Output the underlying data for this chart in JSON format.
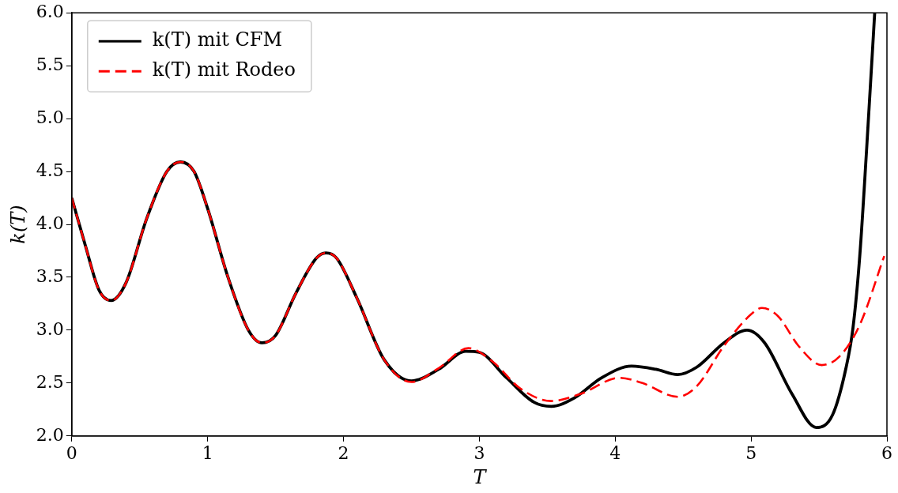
{
  "chart_data": {
    "type": "line",
    "xlabel": "T",
    "ylabel": "k(T)",
    "xlim": [
      0,
      6
    ],
    "ylim": [
      2,
      6
    ],
    "xticks": [
      0,
      1,
      2,
      3,
      4,
      5,
      6
    ],
    "yticks": [
      {
        "value": 2,
        "label": "2.0"
      },
      {
        "value": 2.5,
        "label": "2.5"
      },
      {
        "value": 3,
        "label": "3.0"
      },
      {
        "value": 3.5,
        "label": "3.5"
      },
      {
        "value": 4,
        "label": "4.0"
      },
      {
        "value": 4.5,
        "label": "4.5"
      },
      {
        "value": 5,
        "label": "5.0"
      },
      {
        "value": 5.5,
        "label": "5.5"
      },
      {
        "value": 6,
        "label": "6.0"
      }
    ],
    "grid": false,
    "legend": "top left",
    "marker": "none",
    "series": [
      {
        "name": "k(T) mit CFM",
        "color": "#000000",
        "line_style": "solid",
        "x": [
          0,
          0.1,
          0.2,
          0.29,
          0.4,
          0.55,
          0.7,
          0.8,
          0.9,
          1.0,
          1.15,
          1.3,
          1.4,
          1.5,
          1.65,
          1.8,
          1.87,
          1.95,
          2.1,
          2.3,
          2.5,
          2.7,
          2.9,
          3.0,
          3.2,
          3.4,
          3.53,
          3.7,
          3.9,
          4.12,
          4.3,
          4.46,
          4.6,
          4.8,
          4.97,
          5.1,
          5.3,
          5.48,
          5.6,
          5.7,
          5.75,
          5.8,
          5.85,
          5.91
        ],
        "values": [
          4.25,
          3.8,
          3.38,
          3.28,
          3.45,
          4.05,
          4.5,
          4.59,
          4.5,
          4.15,
          3.5,
          3.0,
          2.88,
          2.95,
          3.35,
          3.68,
          3.73,
          3.68,
          3.3,
          2.72,
          2.52,
          2.63,
          2.8,
          2.79,
          2.55,
          2.32,
          2.28,
          2.36,
          2.55,
          2.66,
          2.63,
          2.58,
          2.65,
          2.88,
          3.0,
          2.88,
          2.4,
          2.08,
          2.2,
          2.65,
          3.02,
          3.7,
          4.7,
          6.0
        ]
      },
      {
        "name": "k(T) mit Rodeo",
        "color": "#ff0000",
        "line_style": "dashed",
        "x": [
          0,
          0.1,
          0.2,
          0.29,
          0.4,
          0.55,
          0.7,
          0.8,
          0.9,
          1.0,
          1.15,
          1.3,
          1.4,
          1.5,
          1.65,
          1.8,
          1.87,
          1.95,
          2.1,
          2.3,
          2.5,
          2.7,
          2.92,
          3.1,
          3.3,
          3.53,
          3.75,
          4.03,
          4.2,
          4.46,
          4.6,
          4.8,
          5.0,
          5.08,
          5.2,
          5.35,
          5.52,
          5.65,
          5.8,
          5.98
        ],
        "values": [
          4.25,
          3.8,
          3.38,
          3.28,
          3.45,
          4.05,
          4.5,
          4.59,
          4.5,
          4.15,
          3.5,
          3.0,
          2.88,
          2.95,
          3.35,
          3.68,
          3.73,
          3.68,
          3.3,
          2.72,
          2.51,
          2.64,
          2.83,
          2.7,
          2.45,
          2.33,
          2.4,
          2.55,
          2.5,
          2.37,
          2.47,
          2.85,
          3.15,
          3.21,
          3.13,
          2.85,
          2.67,
          2.75,
          3.05,
          3.7
        ]
      }
    ]
  }
}
